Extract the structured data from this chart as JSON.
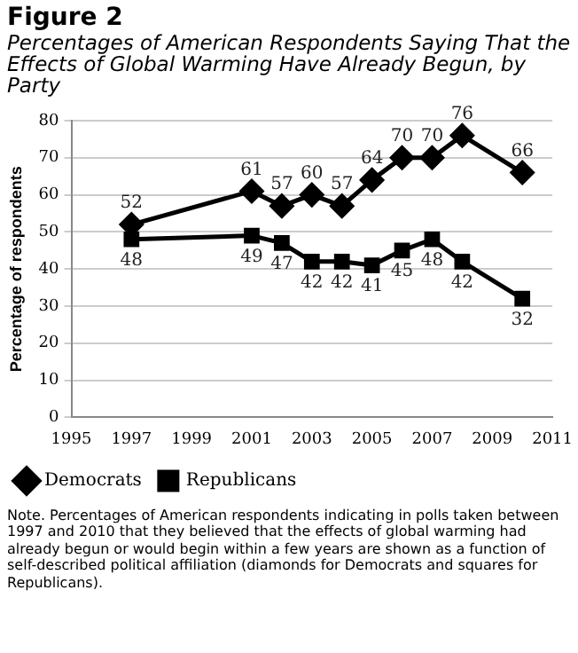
{
  "chart_data": {
    "type": "line",
    "title": "Figure 2",
    "subtitle": "Percentages of American Respondents Saying That the Effects of Global Warming Have Already Begun, by Party",
    "ylabel": "Percentage of respondents",
    "x": [
      1997,
      2001,
      2002,
      2003,
      2004,
      2005,
      2006,
      2007,
      2008,
      2010
    ],
    "series": [
      {
        "name": "Democrats",
        "color": "#000000",
        "marker": "diamond",
        "values": [
          52,
          61,
          57,
          60,
          57,
          64,
          70,
          70,
          76,
          66
        ]
      },
      {
        "name": "Republicans",
        "color": "#000000",
        "marker": "square",
        "values": [
          48,
          49,
          47,
          42,
          42,
          41,
          45,
          48,
          42,
          32
        ]
      }
    ],
    "xlim": [
      1995,
      2011
    ],
    "xticks": [
      1995,
      1997,
      1999,
      2001,
      2003,
      2005,
      2007,
      2009,
      2011
    ],
    "ylim": [
      0,
      80
    ],
    "yticks": [
      0,
      10,
      20,
      30,
      40,
      50,
      60,
      70,
      80
    ],
    "grid": "y",
    "legend": "bottom",
    "data_labels": true,
    "line_style": "solid",
    "annotations": [
      "Note. Percentages of American respondents indicating in polls taken between 1997 and 2010 that they believed that the effects of global warming had already begun or would begin within a few years are shown as a function of self-described political affiliation (diamonds for Democrats and squares for Republicans)."
    ]
  }
}
